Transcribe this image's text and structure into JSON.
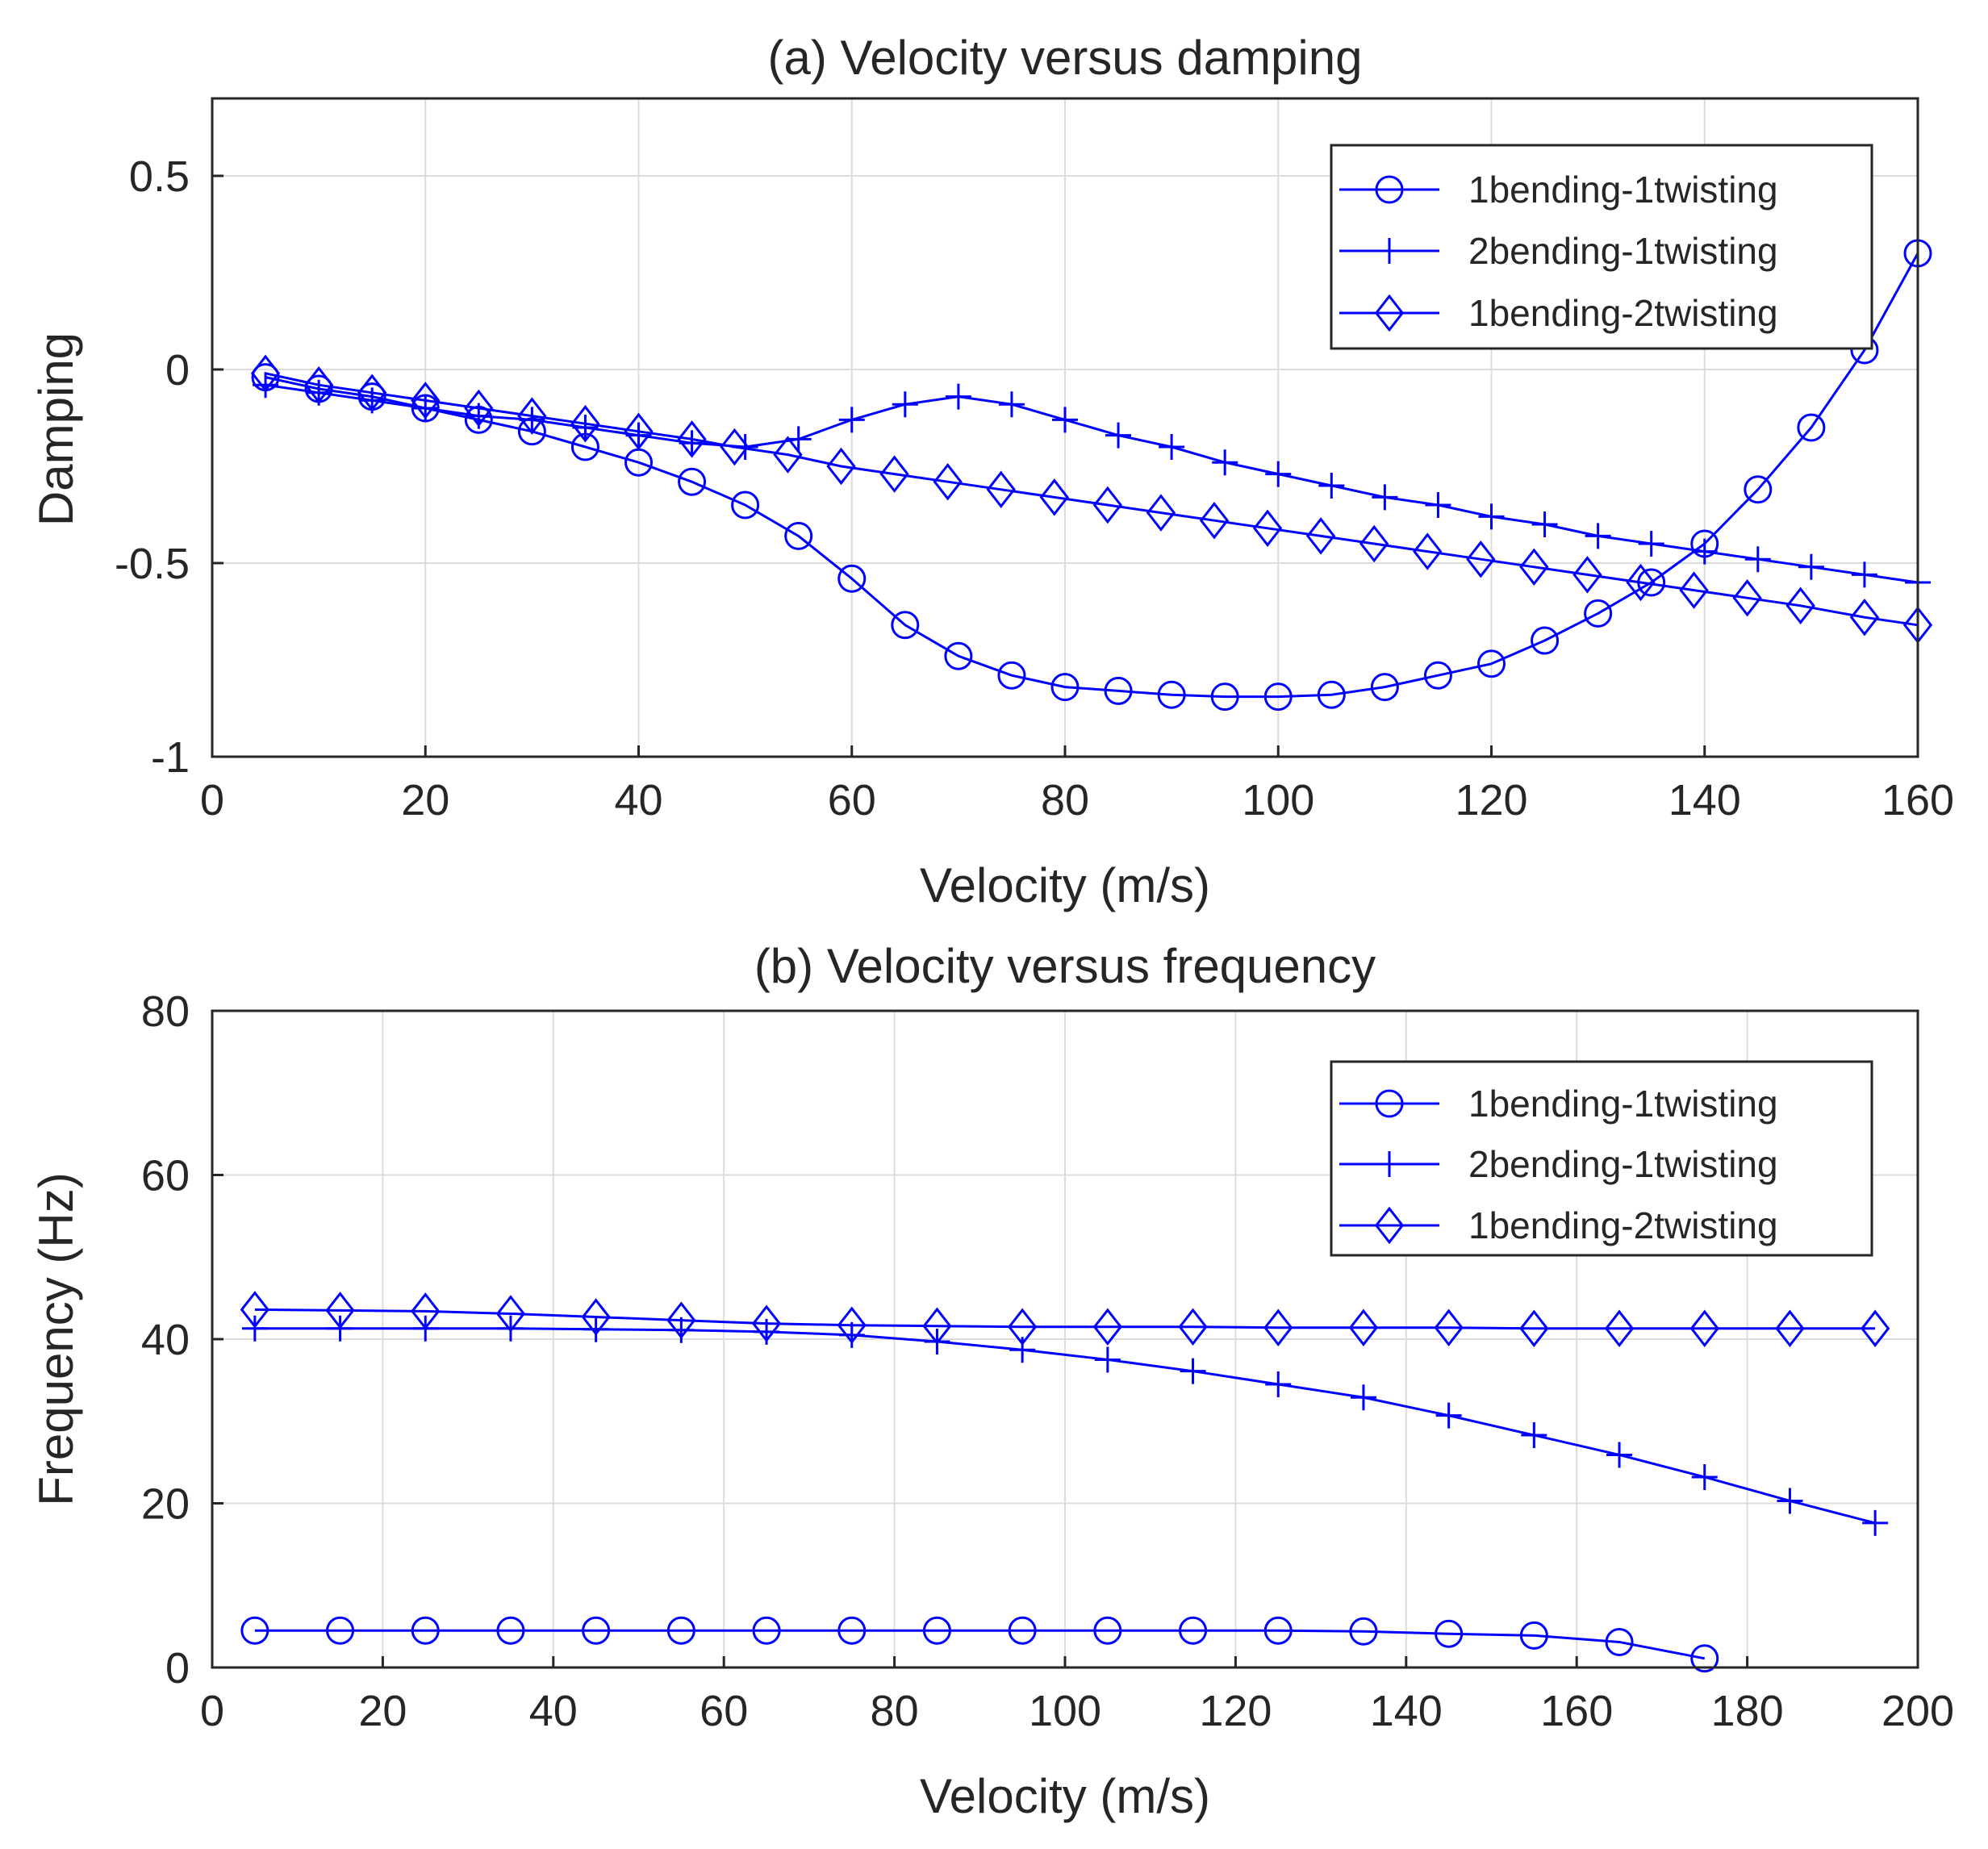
{
  "colors": {
    "series": "#0000ff",
    "grid": "#dcdcdc",
    "axis": "#262626",
    "background": "#ffffff"
  },
  "chart_data": [
    {
      "type": "line",
      "title": "(a) Velocity versus damping",
      "xlabel": "Velocity (m/s)",
      "ylabel": "Damping",
      "xlim": [
        0,
        160
      ],
      "ylim": [
        -1,
        0.7
      ],
      "xticks": [
        0,
        20,
        40,
        60,
        80,
        100,
        120,
        140,
        160
      ],
      "yticks": [
        -1,
        -0.5,
        0,
        0.5
      ],
      "xtick_labels": [
        "0",
        "20",
        "40",
        "60",
        "80",
        "100",
        "120",
        "140",
        "160"
      ],
      "ytick_labels": [
        "-1",
        "-0.5",
        "0",
        "0.5"
      ],
      "grid": true,
      "legend_position": "top-right",
      "series": [
        {
          "name": "1bending-1twisting",
          "marker": "circle",
          "x": [
            5,
            10,
            15,
            20,
            25,
            30,
            35,
            40,
            45,
            50,
            55,
            60,
            65,
            70,
            75,
            80,
            85,
            90,
            95,
            100,
            105,
            110,
            115,
            120,
            125,
            130,
            135,
            140,
            145,
            150,
            155,
            160
          ],
          "y": [
            -0.02,
            -0.05,
            -0.07,
            -0.1,
            -0.13,
            -0.16,
            -0.2,
            -0.24,
            -0.29,
            -0.35,
            -0.43,
            -0.54,
            -0.66,
            -0.74,
            -0.79,
            -0.82,
            -0.83,
            -0.84,
            -0.845,
            -0.845,
            -0.84,
            -0.82,
            -0.79,
            -0.76,
            -0.7,
            -0.63,
            -0.55,
            -0.45,
            -0.31,
            -0.15,
            0.05,
            0.3
          ]
        },
        {
          "name": "2bending-1twisting",
          "marker": "plus",
          "x": [
            5,
            10,
            15,
            20,
            25,
            30,
            35,
            40,
            45,
            50,
            55,
            60,
            65,
            70,
            75,
            80,
            85,
            90,
            95,
            100,
            105,
            110,
            115,
            120,
            125,
            130,
            135,
            140,
            145,
            150,
            155,
            160
          ],
          "y": [
            -0.04,
            -0.06,
            -0.08,
            -0.1,
            -0.12,
            -0.13,
            -0.15,
            -0.17,
            -0.19,
            -0.2,
            -0.18,
            -0.13,
            -0.09,
            -0.07,
            -0.09,
            -0.13,
            -0.17,
            -0.2,
            -0.24,
            -0.27,
            -0.3,
            -0.33,
            -0.35,
            -0.38,
            -0.4,
            -0.43,
            -0.45,
            -0.47,
            -0.49,
            -0.51,
            -0.53,
            -0.55
          ]
        },
        {
          "name": "1bending-2twisting",
          "marker": "diamond",
          "x": [
            5,
            10,
            15,
            20,
            25,
            30,
            35,
            40,
            45,
            49,
            54,
            59,
            64,
            69,
            74,
            79,
            84,
            89,
            94,
            99,
            104,
            109,
            114,
            119,
            124,
            129,
            134,
            139,
            144,
            149,
            155,
            160
          ],
          "y": [
            -0.01,
            -0.04,
            -0.06,
            -0.08,
            -0.1,
            -0.12,
            -0.14,
            -0.16,
            -0.18,
            -0.2,
            -0.22,
            -0.25,
            -0.27,
            -0.29,
            -0.31,
            -0.33,
            -0.35,
            -0.37,
            -0.39,
            -0.41,
            -0.43,
            -0.45,
            -0.47,
            -0.49,
            -0.51,
            -0.53,
            -0.55,
            -0.57,
            -0.59,
            -0.61,
            -0.64,
            -0.66
          ]
        }
      ]
    },
    {
      "type": "line",
      "title": "(b) Velocity versus frequency",
      "xlabel": "Velocity (m/s)",
      "ylabel": "Frequency (Hz)",
      "xlim": [
        0,
        200
      ],
      "ylim": [
        0,
        80
      ],
      "xticks": [
        0,
        20,
        40,
        60,
        80,
        100,
        120,
        140,
        160,
        180,
        200
      ],
      "yticks": [
        0,
        20,
        40,
        60,
        80
      ],
      "xtick_labels": [
        "0",
        "20",
        "40",
        "60",
        "80",
        "100",
        "120",
        "140",
        "160",
        "180",
        "200"
      ],
      "ytick_labels": [
        "0",
        "20",
        "40",
        "60",
        "80"
      ],
      "grid": true,
      "legend_position": "top-right",
      "series": [
        {
          "name": "1bending-1twisting",
          "marker": "circle",
          "x": [
            5,
            15,
            25,
            35,
            45,
            55,
            65,
            75,
            85,
            95,
            105,
            115,
            125,
            135,
            145,
            155,
            165,
            175
          ],
          "y": [
            4.5,
            4.5,
            4.5,
            4.5,
            4.5,
            4.5,
            4.5,
            4.5,
            4.5,
            4.5,
            4.5,
            4.5,
            4.5,
            4.4,
            4.1,
            3.9,
            3.1,
            1.1
          ]
        },
        {
          "name": "2bending-1twisting",
          "marker": "plus",
          "x": [
            5,
            15,
            25,
            35,
            45,
            55,
            65,
            75,
            85,
            95,
            105,
            115,
            125,
            135,
            145,
            155,
            165,
            175,
            185,
            195
          ],
          "y": [
            41.3,
            41.3,
            41.3,
            41.3,
            41.2,
            41.1,
            40.9,
            40.5,
            39.7,
            38.7,
            37.5,
            36.1,
            34.5,
            32.9,
            30.7,
            28.3,
            25.9,
            23.2,
            20.3,
            17.6
          ]
        },
        {
          "name": "1bending-2twisting",
          "marker": "diamond",
          "x": [
            5,
            15,
            25,
            35,
            45,
            55,
            65,
            75,
            85,
            95,
            105,
            115,
            125,
            135,
            145,
            155,
            165,
            175,
            185,
            195
          ],
          "y": [
            43.6,
            43.5,
            43.4,
            43.1,
            42.7,
            42.3,
            41.9,
            41.7,
            41.6,
            41.5,
            41.5,
            41.5,
            41.4,
            41.4,
            41.4,
            41.3,
            41.3,
            41.3,
            41.3,
            41.3
          ]
        }
      ]
    }
  ]
}
